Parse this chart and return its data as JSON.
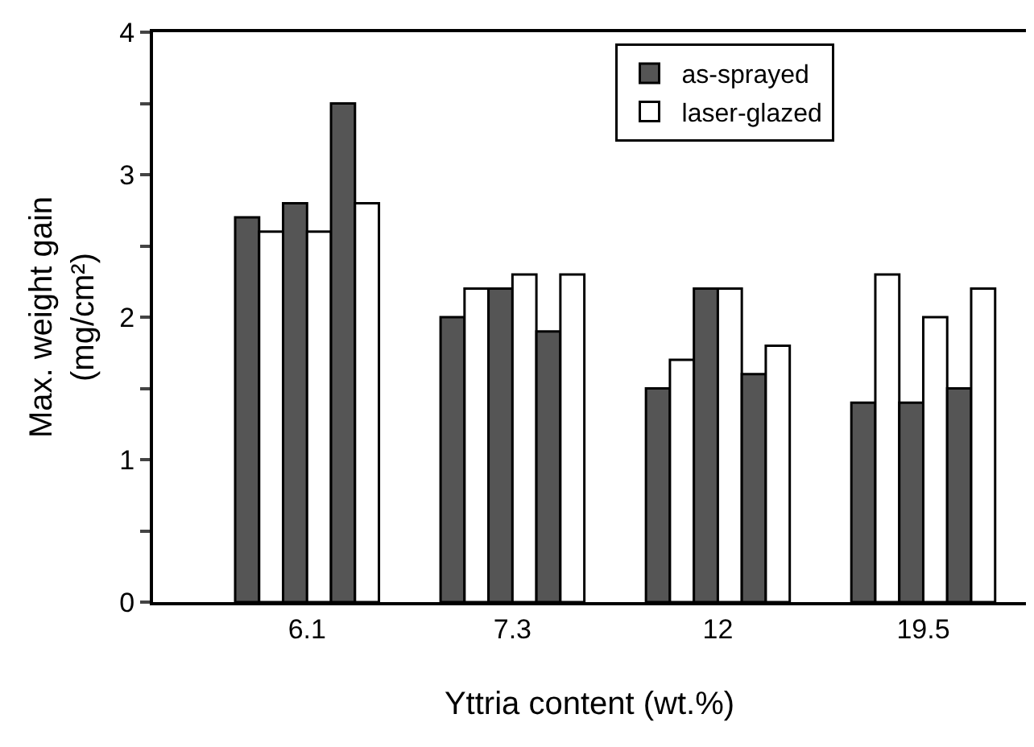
{
  "chart_data": {
    "type": "bar",
    "xlabel": "Yttria content (wt.%)",
    "ylabel": "Max. weight gain\n(mg/cm²)",
    "categories": [
      "6.1",
      "7.3",
      "12",
      "19.5"
    ],
    "series": [
      {
        "name": "as-sprayed",
        "color": "#555555",
        "values": [
          2.7,
          2.0,
          1.5,
          1.4
        ]
      },
      {
        "name": "laser-glazed",
        "color": "#ffffff",
        "values": [
          2.6,
          2.2,
          1.7,
          2.3
        ]
      },
      {
        "color": "#555555",
        "values": [
          2.8,
          2.2,
          2.2,
          1.4
        ]
      },
      {
        "color": "#ffffff",
        "values": [
          2.6,
          2.3,
          2.2,
          2.0
        ]
      },
      {
        "color": "#555555",
        "values": [
          3.5,
          1.9,
          1.6,
          1.5
        ]
      },
      {
        "color": "#ffffff",
        "values": [
          2.8,
          2.3,
          1.8,
          2.2
        ]
      }
    ],
    "ylim": [
      0,
      4
    ],
    "yticks": [
      0,
      {
        "value": 0.5,
        "label": null
      },
      1,
      {
        "value": 1.5,
        "label": null
      },
      2,
      {
        "value": 2.5,
        "label": null
      },
      3,
      {
        "value": 3.5,
        "label": null
      },
      4
    ],
    "legend": "top right"
  }
}
